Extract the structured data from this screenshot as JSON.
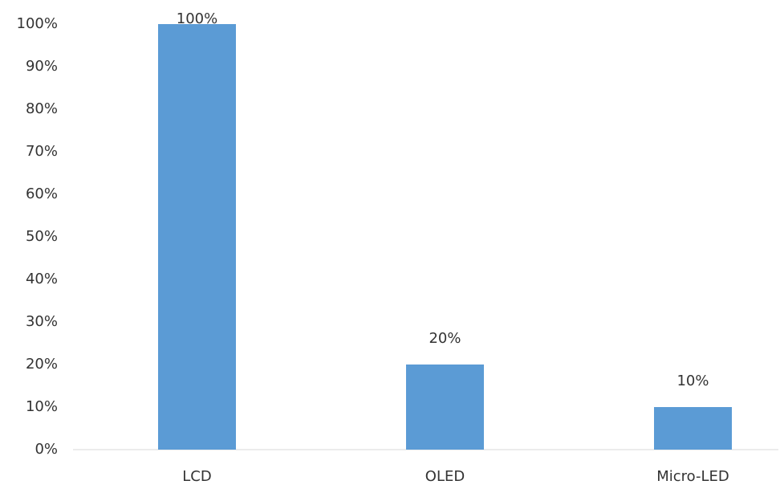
{
  "chart_data": {
    "type": "bar",
    "categories": [
      "LCD",
      "OLED",
      "Micro-LED"
    ],
    "values": [
      100,
      20,
      10
    ],
    "value_labels": [
      "100%",
      "20%",
      "10%"
    ],
    "color": "#5b9bd5",
    "ylim": [
      0,
      100
    ],
    "yticks": [
      {
        "value": 0,
        "label": "0%"
      },
      {
        "value": 10,
        "label": "10%"
      },
      {
        "value": 20,
        "label": "20%"
      },
      {
        "value": 30,
        "label": "30%"
      },
      {
        "value": 40,
        "label": "40%"
      },
      {
        "value": 50,
        "label": "50%"
      },
      {
        "value": 60,
        "label": "60%"
      },
      {
        "value": 70,
        "label": "70%"
      },
      {
        "value": 80,
        "label": "80%"
      },
      {
        "value": 90,
        "label": "90%"
      },
      {
        "value": 100,
        "label": "100%"
      }
    ],
    "grid": false
  }
}
